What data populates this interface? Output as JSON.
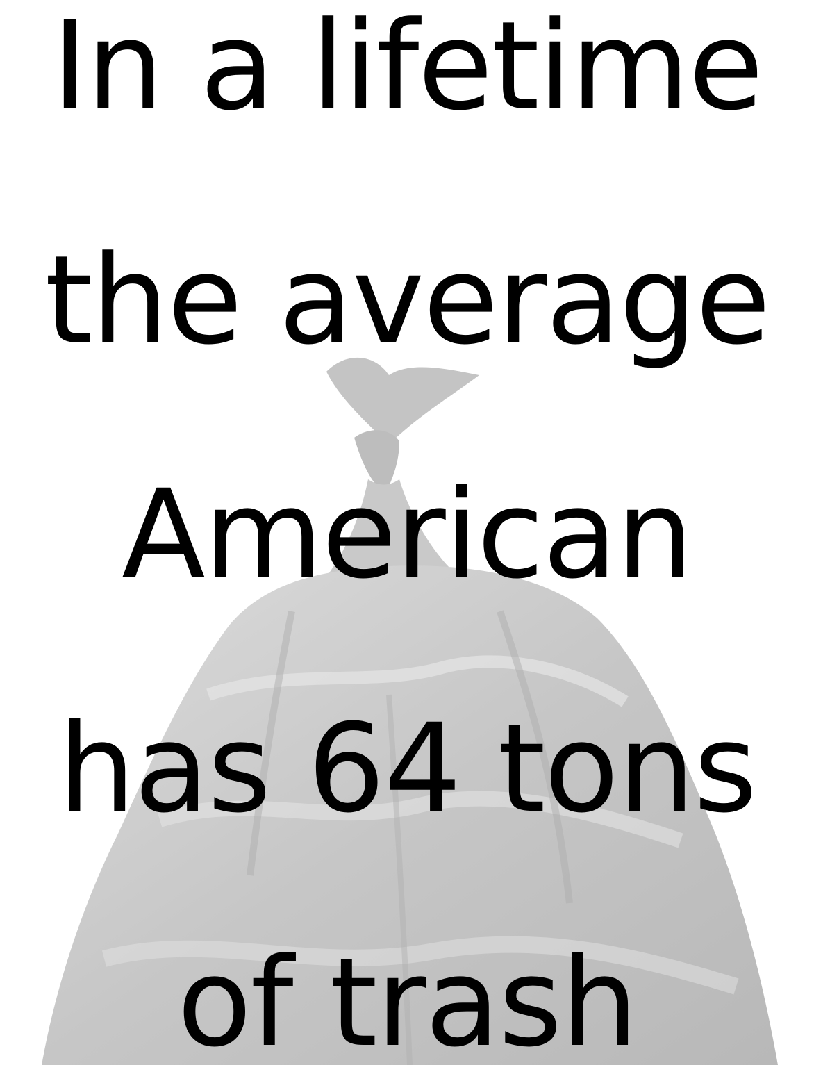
{
  "text_lines": [
    "In a lifetime",
    "the average",
    "American",
    "has 64 tons",
    "of trash"
  ],
  "background_image": {
    "subject": "trash-bag",
    "tint": "#c8c8c8"
  },
  "colors": {
    "text": "#000000",
    "background": "#ffffff"
  }
}
